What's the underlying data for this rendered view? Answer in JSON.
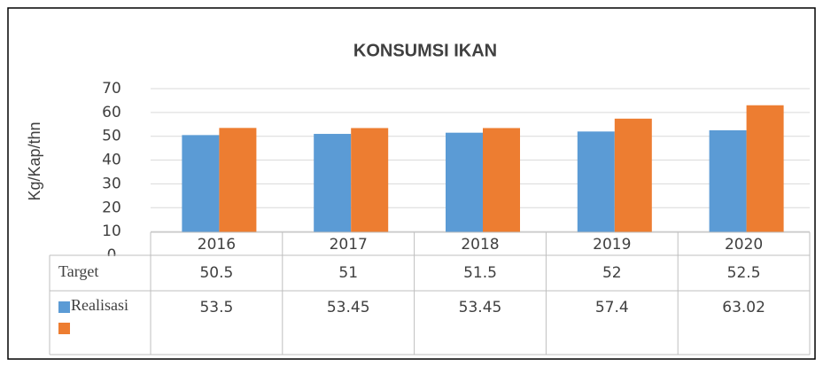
{
  "chart_data": {
    "type": "bar",
    "title": "KONSUMSI IKAN",
    "y_label": "Kg/Kap/thn",
    "categories": [
      "2016",
      "2017",
      "2018",
      "2019",
      "2020"
    ],
    "series": [
      {
        "name": "Target",
        "color": "#5b9bd5",
        "values": [
          50.5,
          51,
          51.5,
          52,
          52.5
        ]
      },
      {
        "name": "Realisasi",
        "color": "#ed7d31",
        "values": [
          53.5,
          53.45,
          53.45,
          57.4,
          63.02
        ]
      }
    ],
    "ylim": [
      0,
      70
    ],
    "yticks": [
      0,
      10,
      20,
      30,
      40,
      50,
      60,
      70
    ],
    "grid": true,
    "data_table": true
  }
}
